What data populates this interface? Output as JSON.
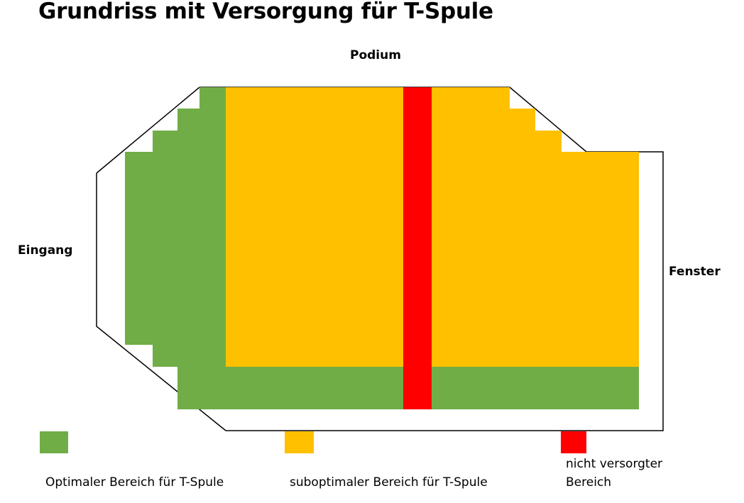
{
  "title": "Grundriss mit Versorgung für T-Spule",
  "labels": {
    "top": "Podium",
    "left": "Eingang",
    "right": "Fenster"
  },
  "colors": {
    "optimal": "#70AD47",
    "suboptimal": "#FFC000",
    "none": "#FF0000",
    "outline": "#000000"
  },
  "legend": {
    "optimal": "Optimaler Bereich für T-Spule",
    "suboptimal": "suboptimaler Bereich für T-Spule",
    "none_line1": "nicht versorgter",
    "none_line2": "Bereich"
  }
}
